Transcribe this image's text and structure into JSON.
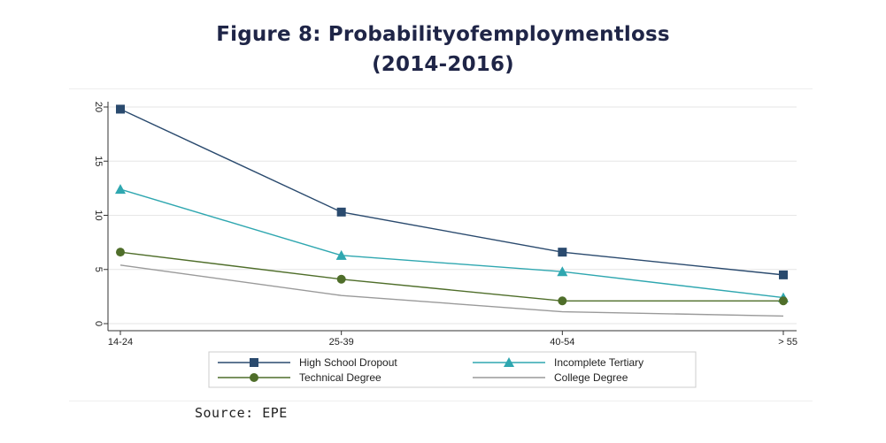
{
  "title": {
    "line1": "Figure 8: Probabilityofemploymentloss",
    "line2": "(2014-2016)"
  },
  "source": "Source: EPE",
  "chart_data": {
    "type": "line",
    "categories": [
      "14-24",
      "25-39",
      "40-54",
      "> 55"
    ],
    "ylim": [
      0,
      20
    ],
    "yticks": [
      0,
      5,
      10,
      15,
      20
    ],
    "grid": true,
    "legend_position": "bottom",
    "series": [
      {
        "name": "High School Dropout",
        "values": [
          19.8,
          10.3,
          6.6,
          4.5
        ],
        "color": "#2a4a6e",
        "marker": "square"
      },
      {
        "name": "Incomplete Tertiary",
        "values": [
          12.4,
          6.3,
          4.8,
          2.4
        ],
        "color": "#2fa7b0",
        "marker": "triangle"
      },
      {
        "name": "Technical Degree",
        "values": [
          6.6,
          4.1,
          2.1,
          2.1
        ],
        "color": "#4f6e2a",
        "marker": "circle"
      },
      {
        "name": "College Degree",
        "values": [
          5.4,
          2.6,
          1.1,
          0.7
        ],
        "color": "#9a9a9a",
        "marker": "none"
      }
    ]
  }
}
